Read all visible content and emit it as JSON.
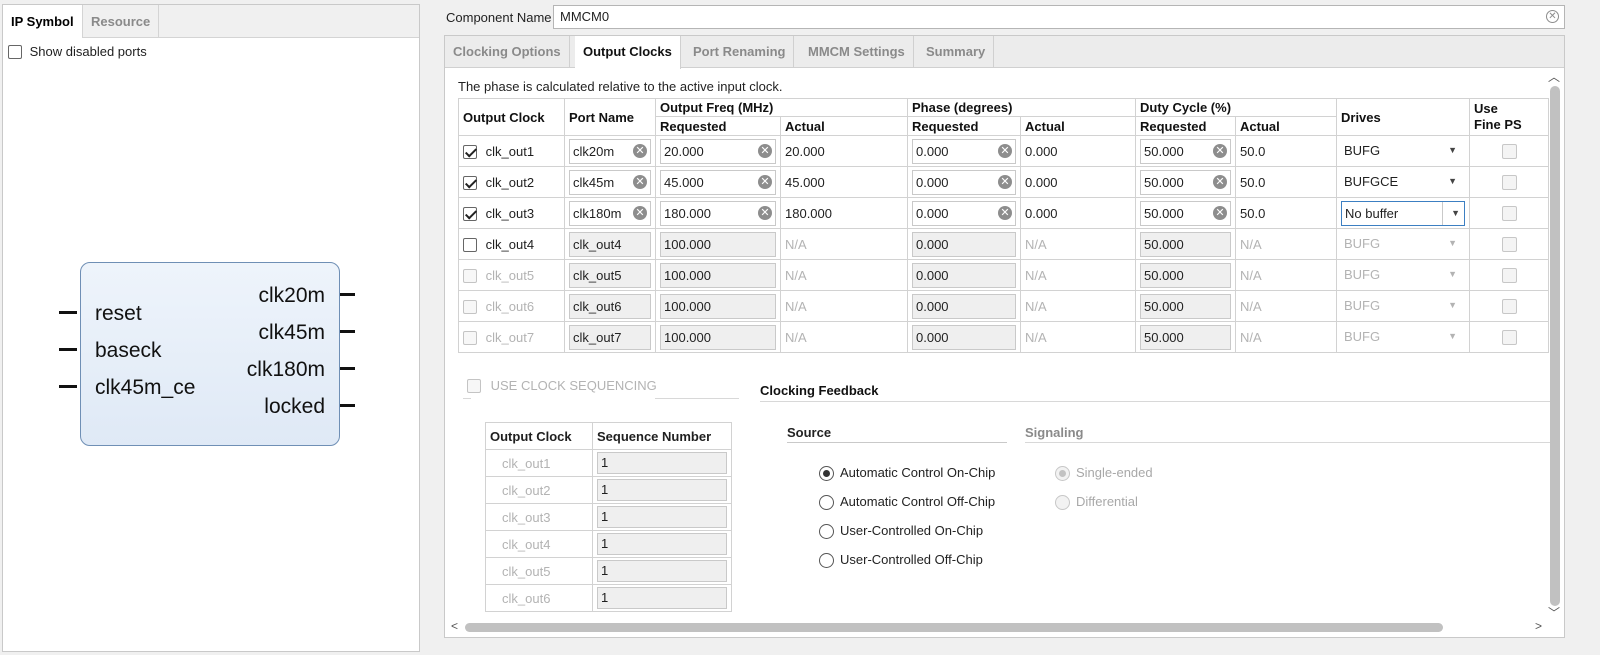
{
  "left": {
    "tabs": [
      "IP Symbol",
      "Resource"
    ],
    "show_disabled_ports": "Show disabled ports",
    "ip_symbol": {
      "inputs": [
        "reset",
        "baseck",
        "clk45m_ce"
      ],
      "outputs": [
        "clk20m",
        "clk45m",
        "clk180m",
        "locked"
      ]
    }
  },
  "component": {
    "label": "Component Name",
    "value": "MMCM0"
  },
  "tabs": [
    "Clocking Options",
    "Output Clocks",
    "Port Renaming",
    "MMCM Settings",
    "Summary"
  ],
  "phase_note": "The phase is calculated relative to the active input clock.",
  "table": {
    "headers": {
      "output_clock": "Output Clock",
      "port_name": "Port Name",
      "output_freq": "Output Freq (MHz)",
      "phase": "Phase (degrees)",
      "duty": "Duty Cycle (%)",
      "requested": "Requested",
      "actual": "Actual",
      "drives": "Drives",
      "use_fine_ps_1": "Use",
      "use_fine_ps_2": "Fine PS"
    },
    "rows": [
      {
        "clock": "clk_out1",
        "port": "clk20m",
        "freq_req": "20.000",
        "freq_act": "20.000",
        "phase_req": "0.000",
        "phase_act": "0.000",
        "duty_req": "50.000",
        "duty_act": "50.0",
        "drives": "BUFG"
      },
      {
        "clock": "clk_out2",
        "port": "clk45m",
        "freq_req": "45.000",
        "freq_act": "45.000",
        "phase_req": "0.000",
        "phase_act": "0.000",
        "duty_req": "50.000",
        "duty_act": "50.0",
        "drives": "BUFGCE"
      },
      {
        "clock": "clk_out3",
        "port": "clk180m",
        "freq_req": "180.000",
        "freq_act": "180.000",
        "phase_req": "0.000",
        "phase_act": "0.000",
        "duty_req": "50.000",
        "duty_act": "50.0",
        "drives": "No buffer"
      },
      {
        "clock": "clk_out4",
        "port": "clk_out4",
        "freq_req": "100.000",
        "freq_act": "N/A",
        "phase_req": "0.000",
        "phase_act": "N/A",
        "duty_req": "50.000",
        "duty_act": "N/A",
        "drives": "BUFG"
      },
      {
        "clock": "clk_out5",
        "port": "clk_out5",
        "freq_req": "100.000",
        "freq_act": "N/A",
        "phase_req": "0.000",
        "phase_act": "N/A",
        "duty_req": "50.000",
        "duty_act": "N/A",
        "drives": "BUFG"
      },
      {
        "clock": "clk_out6",
        "port": "clk_out6",
        "freq_req": "100.000",
        "freq_act": "N/A",
        "phase_req": "0.000",
        "phase_act": "N/A",
        "duty_req": "50.000",
        "duty_act": "N/A",
        "drives": "BUFG"
      },
      {
        "clock": "clk_out7",
        "port": "clk_out7",
        "freq_req": "100.000",
        "freq_act": "N/A",
        "phase_req": "0.000",
        "phase_act": "N/A",
        "duty_req": "50.000",
        "duty_act": "N/A",
        "drives": "BUFG"
      }
    ]
  },
  "sequencing": {
    "checkbox_label": "USE CLOCK SEQUENCING",
    "headers": [
      "Output Clock",
      "Sequence Number"
    ],
    "rows": [
      {
        "clock": "clk_out1",
        "seq": "1"
      },
      {
        "clock": "clk_out2",
        "seq": "1"
      },
      {
        "clock": "clk_out3",
        "seq": "1"
      },
      {
        "clock": "clk_out4",
        "seq": "1"
      },
      {
        "clock": "clk_out5",
        "seq": "1"
      },
      {
        "clock": "clk_out6",
        "seq": "1"
      }
    ]
  },
  "feedback": {
    "title": "Clocking Feedback",
    "source_title": "Source",
    "source_options": [
      "Automatic Control On-Chip",
      "Automatic Control Off-Chip",
      "User-Controlled On-Chip",
      "User-Controlled Off-Chip"
    ],
    "signaling_title": "Signaling",
    "signaling_options": [
      "Single-ended",
      "Differential"
    ]
  }
}
